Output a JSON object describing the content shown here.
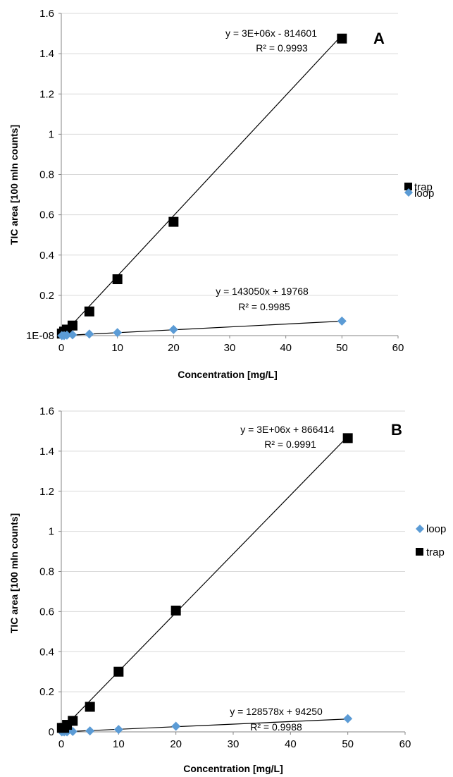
{
  "chart_data": [
    {
      "type": "scatter",
      "panel_label": "A",
      "xlabel": "Concentration [mg/L]",
      "ylabel": "TIC area [100 mln counts]",
      "xlim": [
        0,
        60
      ],
      "ylim": [
        0,
        1.6
      ],
      "x_ticks": [
        "0",
        "10",
        "20",
        "30",
        "40",
        "50",
        "60"
      ],
      "y_ticks": [
        "1E-08",
        "0.2",
        "0.4",
        "0.6",
        "0.8",
        "1",
        "1.2",
        "1.4",
        "1.6"
      ],
      "grid": "horizontal",
      "legend_position": "right",
      "legend": [
        "trap",
        "loop"
      ],
      "series": [
        {
          "name": "trap",
          "marker": "square",
          "color": "#000000",
          "x": [
            0.1,
            0.5,
            1,
            2,
            5,
            10,
            20,
            50
          ],
          "y": [
            0.01,
            0.02,
            0.03,
            0.05,
            0.12,
            0.28,
            0.565,
            1.475
          ],
          "trendline": {
            "slope": 0.03,
            "intercept": -0.00815,
            "equation": "y = 3E+06x - 814601",
            "r2": "R² = 0.9993"
          }
        },
        {
          "name": "loop",
          "marker": "diamond",
          "color": "#5b9bd5",
          "x": [
            0.1,
            0.5,
            1,
            2,
            5,
            10,
            20,
            50
          ],
          "y": [
            0.0,
            0.0,
            0.002,
            0.004,
            0.008,
            0.015,
            0.03,
            0.072
          ],
          "trendline": {
            "slope": 0.00143,
            "intercept": 0.0002,
            "equation": "y = 143050x + 19768",
            "r2": "R² = 0.9985"
          }
        }
      ]
    },
    {
      "type": "scatter",
      "panel_label": "B",
      "xlabel": "Concentration [mg/L]",
      "ylabel": "TIC area [100 mln counts]",
      "xlim": [
        0,
        60
      ],
      "ylim": [
        0,
        1.6
      ],
      "x_ticks": [
        "0",
        "10",
        "20",
        "30",
        "40",
        "50",
        "60"
      ],
      "y_ticks": [
        "0",
        "0.2",
        "0.4",
        "0.6",
        "0.8",
        "1",
        "1.2",
        "1.4",
        "1.6"
      ],
      "grid": "horizontal",
      "legend_position": "right",
      "legend": [
        "loop",
        "trap"
      ],
      "series": [
        {
          "name": "loop",
          "marker": "diamond",
          "color": "#5b9bd5",
          "x": [
            0.1,
            0.5,
            1,
            2,
            5,
            10,
            20,
            50
          ],
          "y": [
            0.0,
            0.0,
            0.0,
            0.002,
            0.005,
            0.012,
            0.028,
            0.066
          ],
          "trendline": {
            "slope": 0.001286,
            "intercept": 0.0,
            "equation": "y = 128578x + 94250",
            "r2": "R² = 0.9988"
          }
        },
        {
          "name": "trap",
          "marker": "square",
          "color": "#000000",
          "x": [
            0.1,
            0.5,
            1,
            2,
            5,
            10,
            20,
            50
          ],
          "y": [
            0.02,
            0.02,
            0.035,
            0.055,
            0.125,
            0.3,
            0.605,
            1.465
          ],
          "trendline": {
            "slope": 0.0293,
            "intercept": 0.0087,
            "equation": "y = 3E+06x + 866414",
            "r2": "R² = 0.9991"
          }
        }
      ]
    }
  ]
}
